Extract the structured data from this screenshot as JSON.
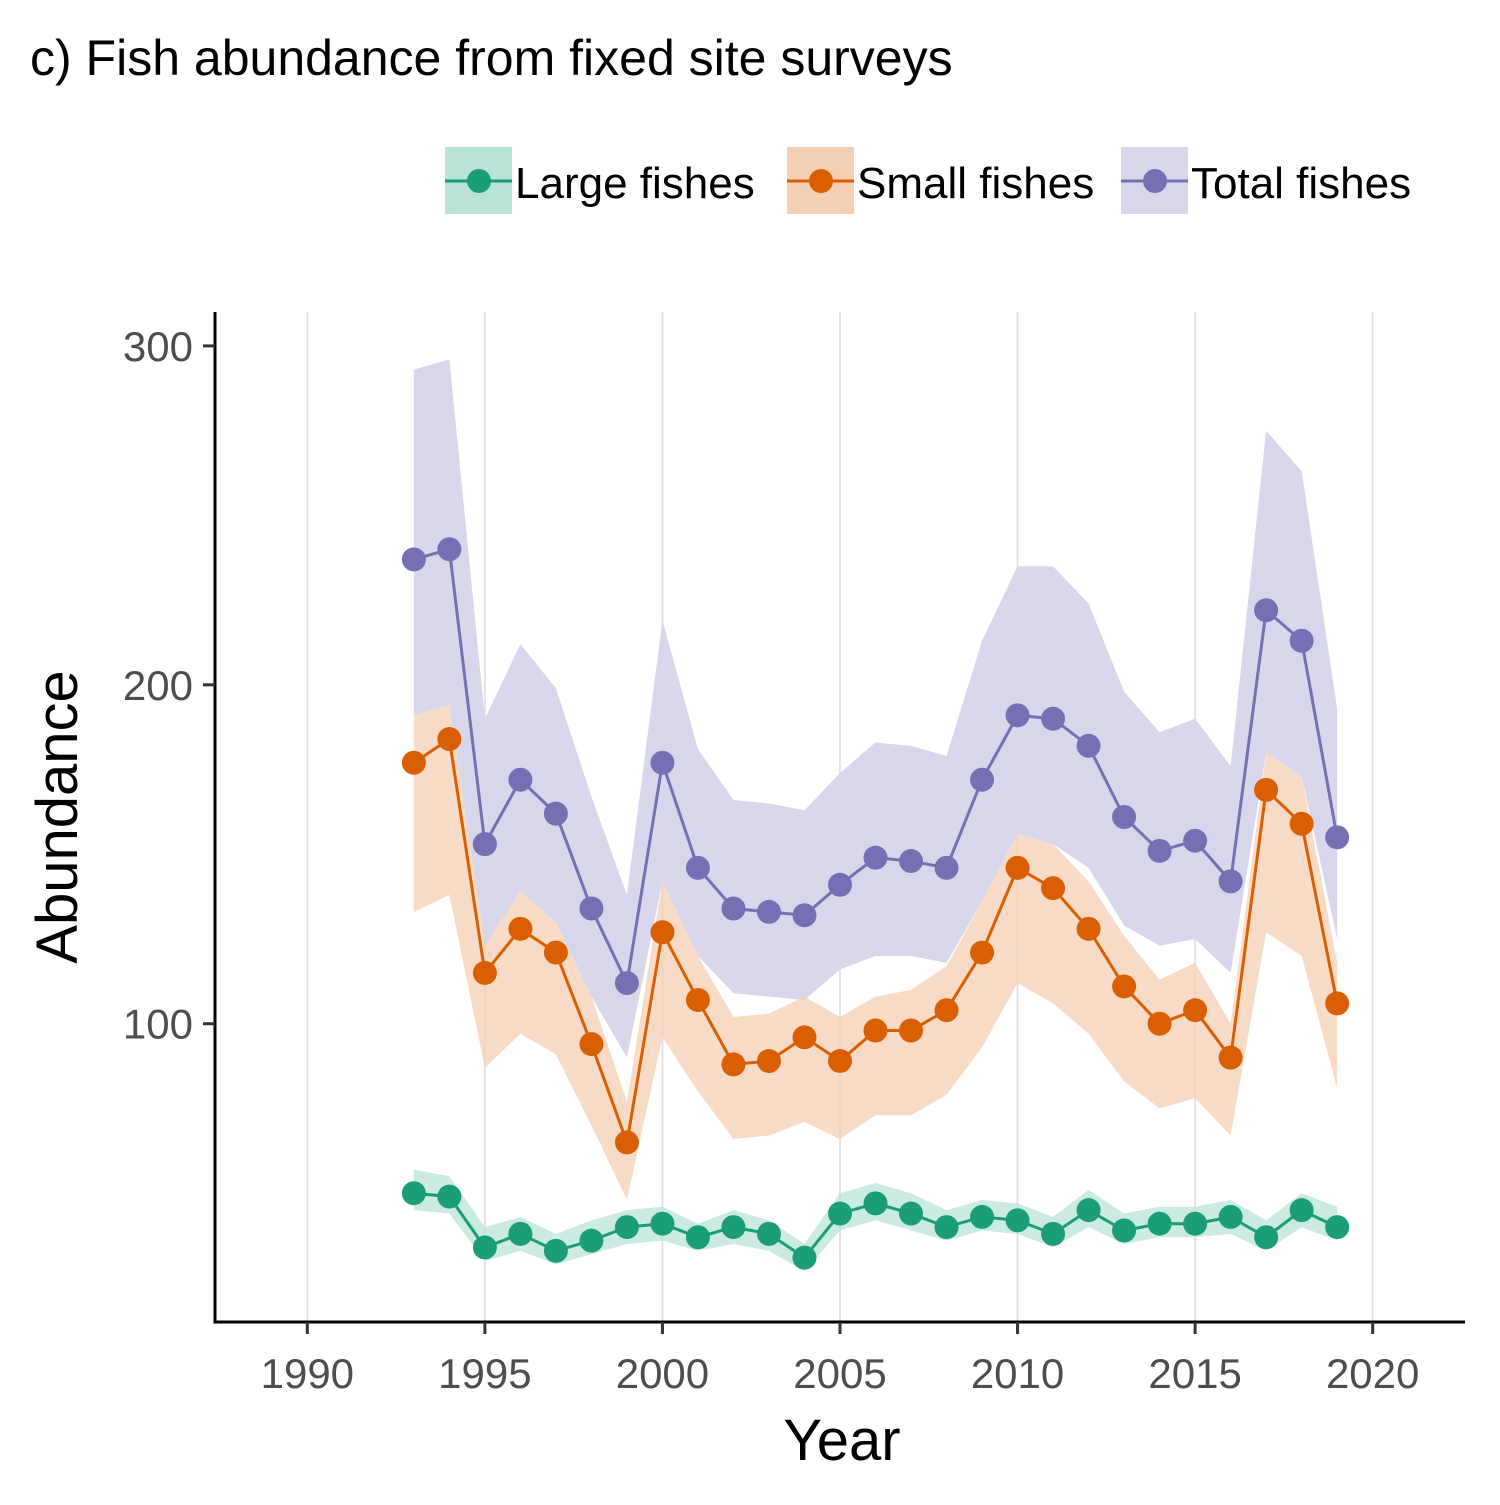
{
  "chart_data": {
    "type": "line",
    "title": "c) Fish abundance from fixed site surveys",
    "xlabel": "Year",
    "ylabel": "Abundance",
    "xlim": [
      1987.4,
      2022.6
    ],
    "ylim": [
      12,
      310
    ],
    "xticks": [
      1990,
      1995,
      2000,
      2005,
      2010,
      2015,
      2020
    ],
    "yticks": [
      100,
      200,
      300
    ],
    "grid": "vertical-major",
    "legend_position": "top-right",
    "x": [
      1993,
      1994,
      1995,
      1996,
      1997,
      1998,
      1999,
      2000,
      2001,
      2002,
      2003,
      2004,
      2005,
      2006,
      2007,
      2008,
      2009,
      2010,
      2011,
      2012,
      2013,
      2014,
      2015,
      2016,
      2017,
      2018,
      2019
    ],
    "series": [
      {
        "name": "Large fishes",
        "color": "#1b9e77",
        "fill": "#b9e3d6",
        "values": [
          50,
          49,
          34,
          38,
          33,
          36,
          40,
          41,
          37,
          40,
          38,
          31,
          44,
          47,
          44,
          40,
          43,
          42,
          38,
          45,
          39,
          41,
          41,
          43,
          37,
          45,
          40
        ],
        "lower": [
          45,
          44,
          30,
          33,
          29,
          32,
          35,
          36,
          33,
          35,
          33,
          27,
          39,
          42,
          39,
          36,
          39,
          38,
          34,
          40,
          35,
          37,
          37,
          38,
          33,
          40,
          36
        ],
        "upper": [
          57,
          55,
          40,
          43,
          38,
          42,
          45,
          46,
          41,
          45,
          42,
          35,
          50,
          53,
          50,
          45,
          48,
          47,
          43,
          51,
          44,
          46,
          46,
          48,
          42,
          50,
          46
        ]
      },
      {
        "name": "Small fishes",
        "color": "#d95f02",
        "fill": "#f5cfb3",
        "values": [
          177,
          184,
          115,
          128,
          121,
          94,
          65,
          127,
          107,
          88,
          89,
          96,
          89,
          98,
          98,
          104,
          121,
          146,
          140,
          128,
          111,
          100,
          104,
          90,
          169,
          159,
          106
        ],
        "lower": [
          133,
          138,
          87,
          97,
          91,
          70,
          48,
          96,
          80,
          66,
          67,
          71,
          66,
          73,
          73,
          79,
          93,
          112,
          106,
          97,
          83,
          75,
          78,
          67,
          127,
          120,
          81
        ],
        "upper": [
          191,
          194,
          123,
          139,
          130,
          108,
          77,
          142,
          120,
          102,
          103,
          108,
          102,
          108,
          110,
          117,
          136,
          156,
          153,
          142,
          126,
          113,
          118,
          100,
          180,
          173,
          118
        ]
      },
      {
        "name": "Total fishes",
        "color": "#7570b3",
        "fill": "#d8d6ea",
        "values": [
          237,
          240,
          153,
          172,
          162,
          134,
          112,
          177,
          146,
          134,
          133,
          132,
          141,
          149,
          148,
          146,
          172,
          191,
          190,
          182,
          161,
          151,
          154,
          142,
          222,
          213,
          155
        ],
        "lower": [
          191,
          194,
          123,
          139,
          130,
          108,
          90,
          142,
          120,
          109,
          108,
          107,
          116,
          120,
          120,
          118,
          136,
          156,
          153,
          146,
          129,
          123,
          125,
          115,
          180,
          173,
          125
        ],
        "upper": [
          293,
          296,
          190,
          212,
          199,
          167,
          138,
          219,
          181,
          166,
          165,
          163,
          174,
          183,
          182,
          179,
          213,
          235,
          235,
          224,
          198,
          186,
          190,
          176,
          275,
          263,
          193
        ]
      }
    ]
  }
}
